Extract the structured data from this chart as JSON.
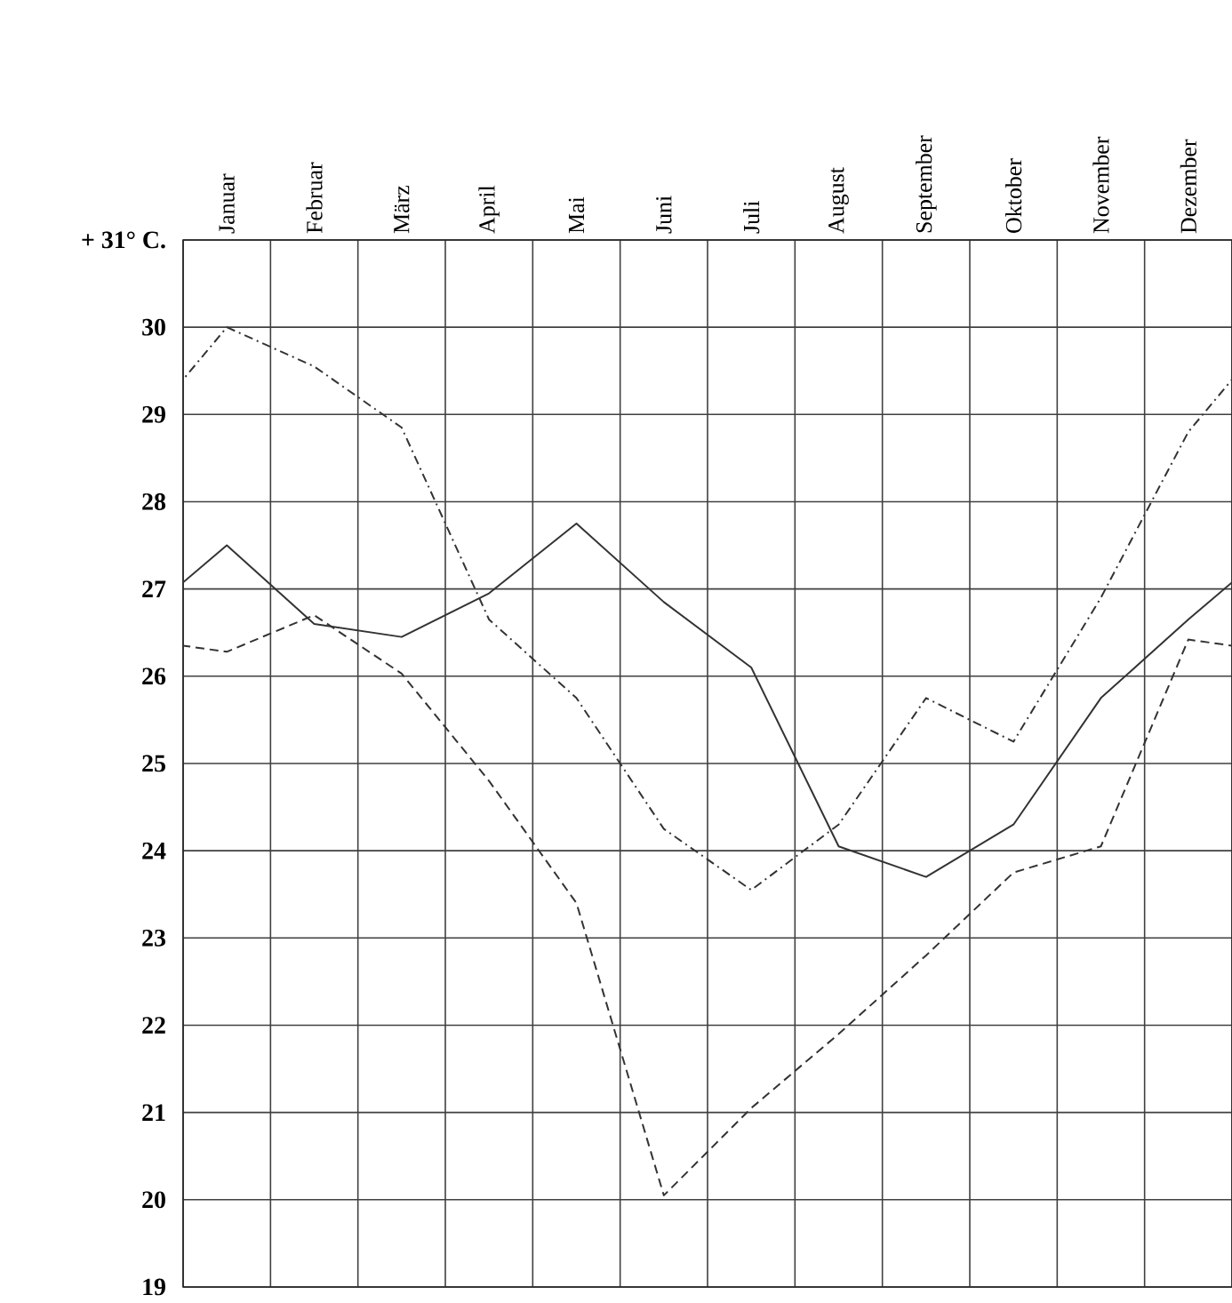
{
  "chart_data": {
    "type": "line",
    "categories": [
      "Januar",
      "Februar",
      "März",
      "April",
      "Mai",
      "Juni",
      "Juli",
      "August",
      "September",
      "Oktober",
      "November",
      "Dezember"
    ],
    "series": [
      {
        "color": "#333333",
        "line_style": "solid",
        "values": [
          27.5,
          26.6,
          26.45,
          26.95,
          27.75,
          26.85,
          26.1,
          24.05,
          23.7,
          24.3,
          25.75,
          26.65
        ]
      },
      {
        "color": "#333333",
        "line_style": "dashed",
        "values": [
          26.28,
          26.7,
          26.03,
          24.8,
          23.4,
          20.05,
          21.05,
          21.9,
          22.8,
          23.75,
          24.05,
          26.42
        ]
      },
      {
        "color": "#333333",
        "line_style": "dashdot",
        "values": [
          30.0,
          29.55,
          28.85,
          26.65,
          25.75,
          24.25,
          23.55,
          24.3,
          25.75,
          25.25,
          26.9,
          28.8
        ]
      }
    ],
    "ylim": [
      19,
      31
    ],
    "yticks": [
      19,
      20,
      21,
      22,
      23,
      24,
      25,
      26,
      27,
      28,
      29,
      30,
      {
        "value": 31,
        "label": "+ 31° C."
      }
    ],
    "grid": true,
    "marker": "none"
  }
}
